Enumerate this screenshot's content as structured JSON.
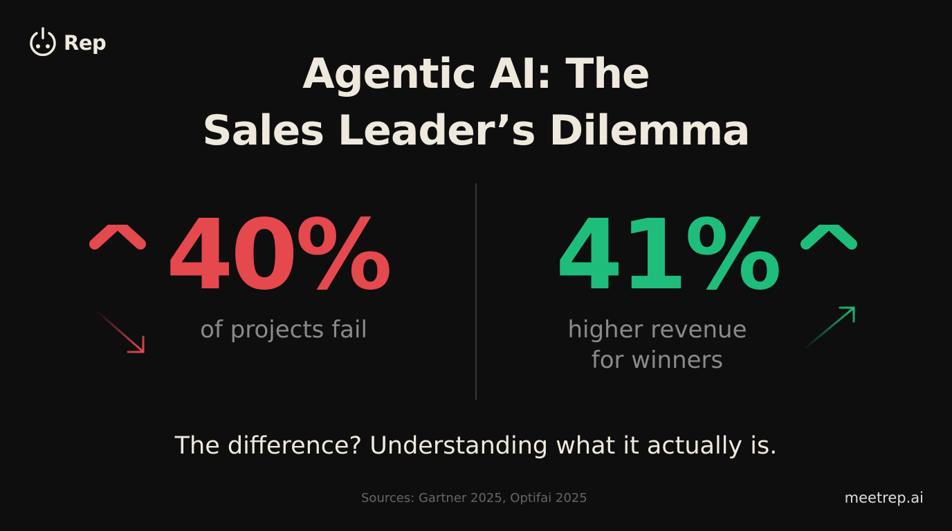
{
  "brand": {
    "name": "Rep",
    "icon": "power-face-icon"
  },
  "title": {
    "line1": "Agentic AI: The",
    "line2": "Sales Leader’s Dilemma"
  },
  "stats": [
    {
      "value": "40%",
      "label": "of projects fail",
      "color": "#e5484d",
      "icon": "arrow-up-and-down-right-icon"
    },
    {
      "value": "41%",
      "label_line1": "higher revenue",
      "label_line2": "for winners",
      "color": "#1fbd7b",
      "icon": "arrow-up-and-up-right-icon"
    }
  ],
  "tagline": "The difference? Understanding what it actually is.",
  "sources": "Sources: Gartner 2025, Optifai 2025",
  "site": "meetrep.ai",
  "colors": {
    "background": "#0e0e0e",
    "text": "#efe9dd",
    "red": "#e5484d",
    "green": "#1fbd7b"
  }
}
